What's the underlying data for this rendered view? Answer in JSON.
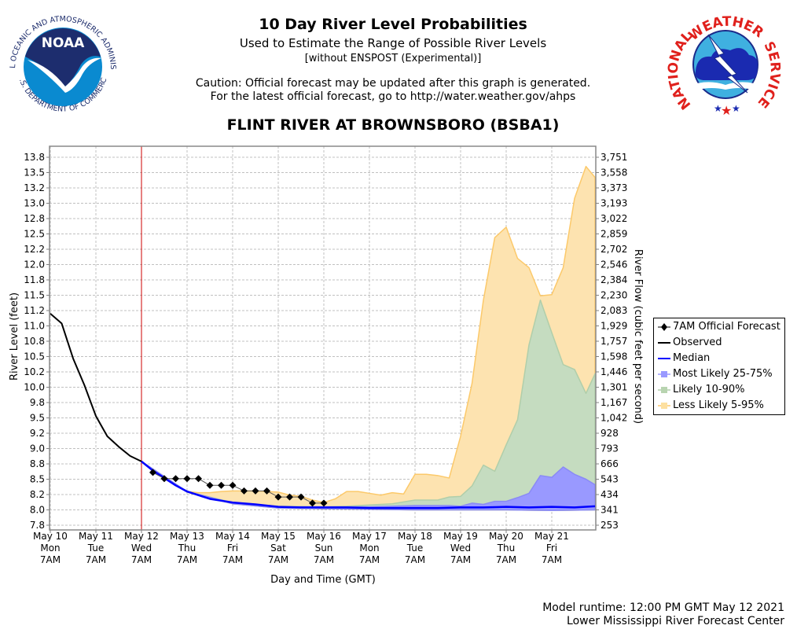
{
  "header": {
    "title": "10 Day River Level Probabilities",
    "subtitle": "Used to Estimate the Range of Possible River Levels",
    "subtitle2": "[without ENSPOST (Experimental)]",
    "caution_line1": "Caution: Official forecast may be updated after this graph is generated.",
    "caution_line2": "For the latest official forecast, go to http://water.weather.gov/ahps",
    "station": "FLINT RIVER AT BROWNSBORO (BSBA1)"
  },
  "logos": {
    "left": {
      "name": "NOAA",
      "ring_text_top": "NATIONAL OCEANIC AND ATMOSPHERIC ADMINISTRATION",
      "ring_text_bottom": "U.S. DEPARTMENT OF COMMERCE"
    },
    "right": {
      "name": "NATIONAL WEATHER SERVICE",
      "word1": "NATIONAL",
      "word2": "WEATHER",
      "word3": "SERVICE"
    }
  },
  "footer": {
    "model_runtime": "Model runtime: 12:00 PM GMT May 12 2021",
    "center": "Lower Mississippi River Forecast Center"
  },
  "colors": {
    "observed": "#000000",
    "median": "#0000ff",
    "band_25_75": "#9999ff",
    "band_10_90": "#c5dcc0",
    "band_5_95": "#fde3b0",
    "band_5_95_edge": "#fcc96a",
    "band_10_90_edge": "#b0ceaa",
    "forecast_time_line": "#cc0000",
    "grid": "#c0c0c0"
  },
  "chart_data": {
    "type": "area",
    "xlabel": "Day and Time (GMT)",
    "ylabel": "River Level (feet)",
    "ylabel_right": "River Flow (cubic feet per second)",
    "x_unit": "days since May 10 7AM",
    "xlim": [
      0,
      11.95
    ],
    "ylim": [
      7.75,
      13.95
    ],
    "grid": true,
    "legend_position": "right",
    "forecast_start_x": 2,
    "x_ticks": [
      {
        "x": 0,
        "date": "May 10",
        "dow": "Mon",
        "time": "7AM"
      },
      {
        "x": 1,
        "date": "May 11",
        "dow": "Tue",
        "time": "7AM"
      },
      {
        "x": 2,
        "date": "May 12",
        "dow": "Wed",
        "time": "7AM"
      },
      {
        "x": 3,
        "date": "May 13",
        "dow": "Thu",
        "time": "7AM"
      },
      {
        "x": 4,
        "date": "May 14",
        "dow": "Fri",
        "time": "7AM"
      },
      {
        "x": 5,
        "date": "May 15",
        "dow": "Sat",
        "time": "7AM"
      },
      {
        "x": 6,
        "date": "May 16",
        "dow": "Sun",
        "time": "7AM"
      },
      {
        "x": 7,
        "date": "May 17",
        "dow": "Mon",
        "time": "7AM"
      },
      {
        "x": 8,
        "date": "May 18",
        "dow": "Tue",
        "time": "7AM"
      },
      {
        "x": 9,
        "date": "May 19",
        "dow": "Wed",
        "time": "7AM"
      },
      {
        "x": 10,
        "date": "May 20",
        "dow": "Thu",
        "time": "7AM"
      },
      {
        "x": 11,
        "date": "May 21",
        "dow": "Fri",
        "time": "7AM"
      }
    ],
    "y_ticks_left": [
      {
        "v": 7.75,
        "label": "7.8"
      },
      {
        "v": 8.0,
        "label": "8.0"
      },
      {
        "v": 8.25,
        "label": "8.2"
      },
      {
        "v": 8.5,
        "label": "8.5"
      },
      {
        "v": 8.75,
        "label": "8.8"
      },
      {
        "v": 9.0,
        "label": "9.0"
      },
      {
        "v": 9.25,
        "label": "9.2"
      },
      {
        "v": 9.5,
        "label": "9.5"
      },
      {
        "v": 9.75,
        "label": "9.8"
      },
      {
        "v": 10.0,
        "label": "10.0"
      },
      {
        "v": 10.25,
        "label": "10.2"
      },
      {
        "v": 10.5,
        "label": "10.5"
      },
      {
        "v": 10.75,
        "label": "10.8"
      },
      {
        "v": 11.0,
        "label": "11.0"
      },
      {
        "v": 11.25,
        "label": "11.2"
      },
      {
        "v": 11.5,
        "label": "11.5"
      },
      {
        "v": 11.75,
        "label": "11.8"
      },
      {
        "v": 12.0,
        "label": "12.0"
      },
      {
        "v": 12.25,
        "label": "12.2"
      },
      {
        "v": 12.5,
        "label": "12.5"
      },
      {
        "v": 12.75,
        "label": "12.8"
      },
      {
        "v": 13.0,
        "label": "13.0"
      },
      {
        "v": 13.25,
        "label": "13.2"
      },
      {
        "v": 13.5,
        "label": "13.5"
      },
      {
        "v": 13.75,
        "label": "13.8"
      }
    ],
    "y_ticks_right": [
      {
        "v": 7.75,
        "label": "253"
      },
      {
        "v": 8.0,
        "label": "341"
      },
      {
        "v": 8.25,
        "label": "434"
      },
      {
        "v": 8.5,
        "label": "543"
      },
      {
        "v": 8.75,
        "label": "666"
      },
      {
        "v": 9.0,
        "label": "793"
      },
      {
        "v": 9.25,
        "label": "928"
      },
      {
        "v": 9.5,
        "label": "1,042"
      },
      {
        "v": 9.75,
        "label": "1,167"
      },
      {
        "v": 10.0,
        "label": "1,301"
      },
      {
        "v": 10.25,
        "label": "1,446"
      },
      {
        "v": 10.5,
        "label": "1,598"
      },
      {
        "v": 10.75,
        "label": "1,757"
      },
      {
        "v": 11.0,
        "label": "1,929"
      },
      {
        "v": 11.25,
        "label": "2,083"
      },
      {
        "v": 11.5,
        "label": "2,230"
      },
      {
        "v": 11.75,
        "label": "2,384"
      },
      {
        "v": 12.0,
        "label": "2,546"
      },
      {
        "v": 12.25,
        "label": "2,702"
      },
      {
        "v": 12.5,
        "label": "2,859"
      },
      {
        "v": 12.75,
        "label": "3,022"
      },
      {
        "v": 13.0,
        "label": "3,193"
      },
      {
        "v": 13.25,
        "label": "3,373"
      },
      {
        "v": 13.5,
        "label": "3,558"
      },
      {
        "v": 13.75,
        "label": "3,751"
      }
    ],
    "legend": [
      {
        "key": "forecast",
        "label": "7AM Official Forecast"
      },
      {
        "key": "observed",
        "label": "Observed"
      },
      {
        "key": "median",
        "label": "Median"
      },
      {
        "key": "band_25_75",
        "label": "Most Likely 25-75%"
      },
      {
        "key": "band_10_90",
        "label": "Likely 10-90%"
      },
      {
        "key": "band_5_95",
        "label": "Less Likely 5-95%"
      }
    ],
    "series": [
      {
        "name": "Observed",
        "x": [
          0,
          0.25,
          0.5,
          0.75,
          1.0,
          1.25,
          1.5,
          1.75,
          2.0
        ],
        "y": [
          11.2,
          11.04,
          10.47,
          10.03,
          9.53,
          9.2,
          9.03,
          8.88,
          8.79
        ]
      },
      {
        "name": "7AM Official Forecast",
        "x": [
          2.25,
          2.5,
          2.75,
          3.0,
          3.25,
          3.5,
          3.75,
          4.0,
          4.25,
          4.5,
          4.75,
          5.0,
          5.25,
          5.5,
          5.75,
          6.0
        ],
        "y": [
          8.61,
          8.51,
          8.51,
          8.51,
          8.51,
          8.4,
          8.4,
          8.4,
          8.31,
          8.31,
          8.31,
          8.21,
          8.21,
          8.21,
          8.11,
          8.11
        ]
      },
      {
        "name": "Median",
        "x": [
          2.0,
          2.25,
          2.5,
          2.75,
          3.0,
          3.25,
          3.5,
          3.75,
          4.0,
          4.5,
          5.0,
          5.5,
          6.0,
          6.5,
          7.0,
          7.5,
          8.0,
          8.5,
          9.0,
          9.5,
          10.0,
          10.5,
          11.0,
          11.5,
          11.95
        ],
        "y": [
          8.79,
          8.64,
          8.52,
          8.4,
          8.3,
          8.24,
          8.18,
          8.15,
          8.12,
          8.09,
          8.05,
          8.04,
          8.04,
          8.04,
          8.03,
          8.03,
          8.03,
          8.03,
          8.04,
          8.04,
          8.05,
          8.04,
          8.05,
          8.04,
          8.06
        ]
      },
      {
        "name": "Less Likely 5-95% (upper)",
        "x": [
          2.0,
          2.25,
          2.5,
          2.75,
          3.0,
          3.25,
          3.5,
          3.75,
          4.0,
          4.25,
          4.5,
          4.75,
          5.0,
          5.25,
          5.5,
          5.75,
          6.0,
          6.25,
          6.5,
          6.75,
          7.0,
          7.25,
          7.5,
          7.75,
          8.0,
          8.25,
          8.5,
          8.75,
          9.0,
          9.25,
          9.5,
          9.75,
          10.0,
          10.25,
          10.5,
          10.75,
          11.0,
          11.25,
          11.5,
          11.75,
          11.95
        ],
        "y": [
          8.79,
          8.64,
          8.52,
          8.4,
          8.3,
          8.28,
          8.28,
          8.3,
          8.31,
          8.31,
          8.31,
          8.3,
          8.29,
          8.24,
          8.22,
          8.16,
          8.12,
          8.18,
          8.3,
          8.3,
          8.27,
          8.24,
          8.28,
          8.26,
          8.58,
          8.58,
          8.56,
          8.52,
          9.2,
          10.06,
          11.42,
          12.44,
          12.61,
          12.1,
          11.95,
          11.49,
          11.51,
          11.95,
          13.08,
          13.6,
          13.42
        ]
      },
      {
        "name": "Likely 10-90% (upper)",
        "x": [
          2.0,
          3.0,
          4.0,
          5.0,
          6.0,
          6.5,
          7.0,
          7.5,
          8.0,
          8.25,
          8.5,
          8.75,
          9.0,
          9.25,
          9.5,
          9.75,
          10.0,
          10.25,
          10.5,
          10.75,
          11.0,
          11.25,
          11.5,
          11.75,
          11.95
        ],
        "y": [
          8.79,
          8.3,
          8.12,
          8.06,
          8.05,
          8.06,
          8.08,
          8.1,
          8.16,
          8.16,
          8.16,
          8.21,
          8.22,
          8.39,
          8.73,
          8.63,
          9.06,
          9.47,
          10.69,
          11.42,
          10.89,
          10.37,
          10.29,
          9.9,
          10.22
        ]
      },
      {
        "name": "Most Likely 25-75% (upper)",
        "x": [
          2.0,
          3.0,
          4.0,
          5.0,
          6.0,
          7.0,
          7.5,
          8.0,
          8.5,
          8.75,
          9.0,
          9.25,
          9.5,
          9.75,
          10.0,
          10.25,
          10.5,
          10.75,
          11.0,
          11.25,
          11.5,
          11.75,
          11.95
        ],
        "y": [
          8.79,
          8.3,
          8.11,
          8.05,
          8.05,
          8.05,
          8.06,
          8.07,
          8.07,
          8.07,
          8.06,
          8.11,
          8.09,
          8.14,
          8.14,
          8.2,
          8.27,
          8.56,
          8.53,
          8.7,
          8.58,
          8.5,
          8.41
        ]
      },
      {
        "name": "Lower band edge (5%)",
        "x": [
          2.0,
          3.0,
          4.0,
          5.0,
          6.0,
          7.0,
          8.0,
          9.0,
          10.0,
          11.0,
          11.95
        ],
        "y": [
          8.79,
          8.29,
          8.1,
          8.03,
          8.02,
          8.01,
          8.0,
          8.0,
          8.0,
          7.99,
          8.0
        ]
      }
    ]
  }
}
